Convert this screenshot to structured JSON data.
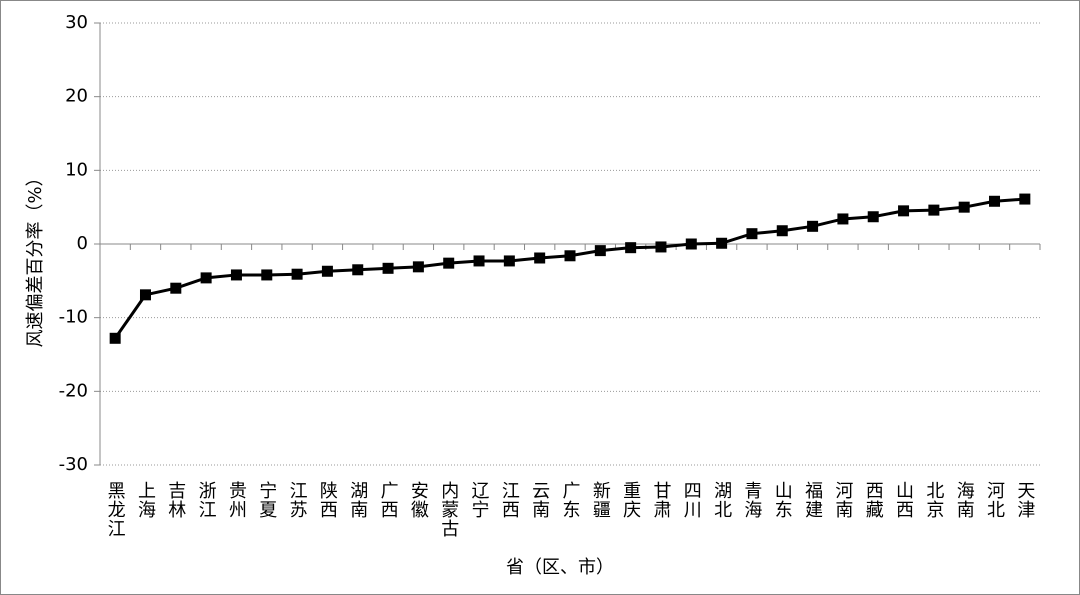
{
  "chart_data": {
    "type": "line",
    "x_label": "省（区、市）",
    "y_label": "风速偏差百分率（%）",
    "categories": [
      "黑龙江",
      "上海",
      "吉林",
      "浙江",
      "贵州",
      "宁夏",
      "江苏",
      "陕西",
      "湖南",
      "广西",
      "安徽",
      "内蒙古",
      "辽宁",
      "江西",
      "云南",
      "广东",
      "新疆",
      "重庆",
      "甘肃",
      "四川",
      "湖北",
      "青海",
      "山东",
      "福建",
      "河南",
      "西藏",
      "山西",
      "北京",
      "海南",
      "河北",
      "天津"
    ],
    "values": [
      -12.8,
      -6.9,
      -6.0,
      -4.6,
      -4.2,
      -4.2,
      -4.1,
      -3.7,
      -3.5,
      -3.3,
      -3.1,
      -2.6,
      -2.3,
      -2.3,
      -1.9,
      -1.6,
      -0.9,
      -0.5,
      -0.4,
      0,
      0.1,
      1.4,
      1.8,
      2.4,
      3.4,
      3.7,
      4.5,
      4.6,
      5.0,
      5.8,
      6.1
    ],
    "color": "#000000",
    "ylim": [
      -30,
      30
    ],
    "yticks": [
      -30,
      -20,
      -10,
      0,
      10,
      20,
      30
    ],
    "grid": true
  }
}
